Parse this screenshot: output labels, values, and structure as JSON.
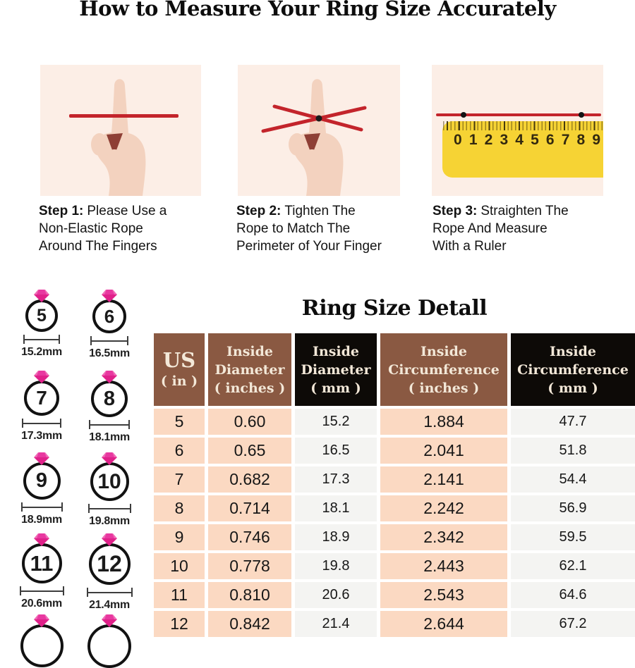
{
  "page": {
    "title": "How to Measure Your Ring Size Accurately"
  },
  "steps": [
    {
      "label": "Step 1:",
      "line1": "Please Use a",
      "line2": "Non-Elastic Rope",
      "line3": "Around The Fingers"
    },
    {
      "label": "Step 2:",
      "line1": "Tighten The",
      "line2": "Rope to Match The",
      "line3": "Perimeter of Your Finger"
    },
    {
      "label": "Step 3:",
      "line1": "Straighten The",
      "line2": "Rope And Measure",
      "line3": "With a Ruler"
    }
  ],
  "ruler": {
    "numbers": [
      "0",
      "1",
      "2",
      "3",
      "4",
      "5",
      "6",
      "7",
      "8",
      "9"
    ]
  },
  "rings": [
    {
      "size": "5",
      "diameter_label": "15.2mm"
    },
    {
      "size": "6",
      "diameter_label": "16.5mm"
    },
    {
      "size": "7",
      "diameter_label": "17.3mm"
    },
    {
      "size": "8",
      "diameter_label": "18.1mm"
    },
    {
      "size": "9",
      "diameter_label": "18.9mm"
    },
    {
      "size": "10",
      "diameter_label": "19.8mm"
    },
    {
      "size": "11",
      "diameter_label": "20.6mm"
    },
    {
      "size": "12",
      "diameter_label": "21.4mm"
    }
  ],
  "partial_rings_visible": 2,
  "table": {
    "title": "Ring Size Detall",
    "headers": [
      [
        "US",
        "( in )"
      ],
      [
        "Inside",
        "Diameter",
        "( inches )"
      ],
      [
        "Inside",
        "Diameter",
        "( mm )"
      ],
      [
        "Inside",
        "Circumference",
        "( inches )"
      ],
      [
        "Inside",
        "Circumference",
        "( mm )"
      ]
    ],
    "rows": [
      [
        "5",
        "0.60",
        "15.2",
        "1.884",
        "47.7"
      ],
      [
        "6",
        "0.65",
        "16.5",
        "2.041",
        "51.8"
      ],
      [
        "7",
        "0.682",
        "17.3",
        "2.141",
        "54.4"
      ],
      [
        "8",
        "0.714",
        "18.1",
        "2.242",
        "56.9"
      ],
      [
        "9",
        "0.746",
        "18.9",
        "2.342",
        "59.5"
      ],
      [
        "10",
        "0.778",
        "19.8",
        "2.443",
        "62.1"
      ],
      [
        "11",
        "0.810",
        "20.6",
        "2.543",
        "64.6"
      ],
      [
        "12",
        "0.842",
        "21.4",
        "2.644",
        "67.2"
      ]
    ]
  },
  "colors": {
    "rope_red": "#c3242b",
    "ruler_yellow": "#f6d334",
    "panel_bg": "#fceee6",
    "skin": "#f3d2bf",
    "header_brown": "#8a5942",
    "header_black": "#0d0a07",
    "header_text": "#f3e8d8",
    "cell_pink": "#fbd9c2",
    "cell_gray": "#f4f4f2",
    "diamond_pink": "#e0218a"
  }
}
